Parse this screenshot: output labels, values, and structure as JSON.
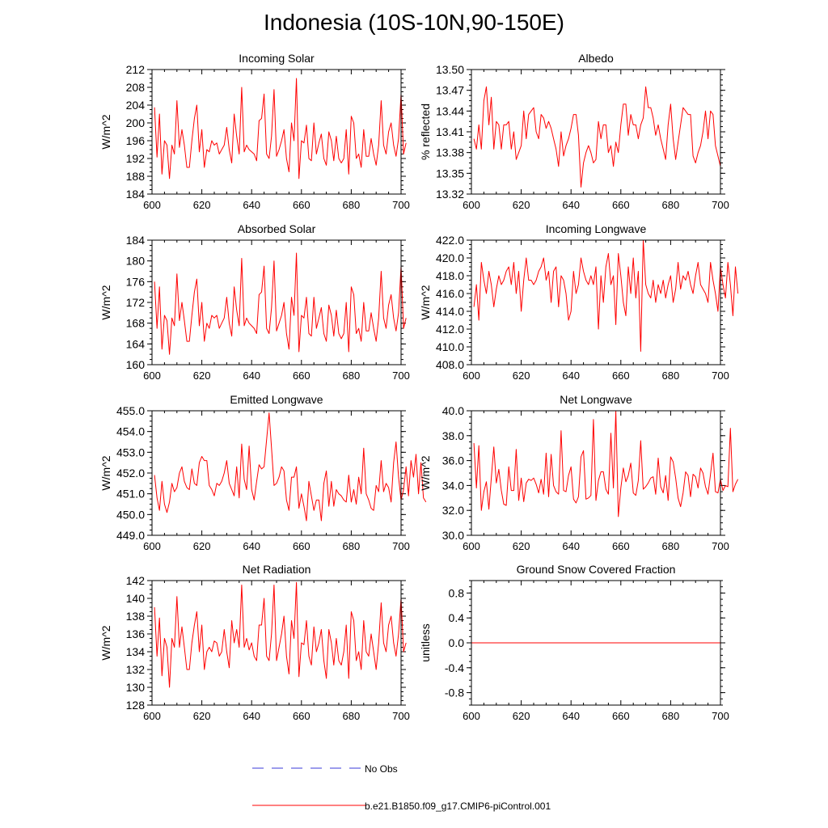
{
  "title": "Indonesia (10S-10N,90-150E)",
  "legend": {
    "entries": [
      {
        "label": "No Obs",
        "color": "#3a3ad8",
        "style": "dashed"
      },
      {
        "label": "b.e21.B1850.f09_g17.CMIP6-piControl.001",
        "color": "#ff0000",
        "style": "solid"
      }
    ]
  },
  "chart_data": [
    {
      "type": "line",
      "title": "Incoming Solar",
      "ylabel": "W/m^2",
      "xlabel": "",
      "xlim": [
        600,
        700
      ],
      "ylim": [
        184,
        212
      ],
      "xticks": [
        "600",
        "620",
        "640",
        "660",
        "680",
        "700"
      ],
      "yticks": [
        "184",
        "188",
        "192",
        "196",
        "200",
        "204",
        "208",
        "212"
      ],
      "series": [
        {
          "name": "b.e21.B1850.f09_g17.CMIP6-piControl.001",
          "color": "#ff0000",
          "x_start": 601,
          "values": [
            203.5,
            192.3,
            202.0,
            188.5,
            196.0,
            195.0,
            187.5,
            195.0,
            193.0,
            205.0,
            194.5,
            198.5,
            195.0,
            190.0,
            190.0,
            196.0,
            201.0,
            204.0,
            193.5,
            198.5,
            190.0,
            194.0,
            193.5,
            196.0,
            195.0,
            195.5,
            193.0,
            194.0,
            195.0,
            199.0,
            194.0,
            191.0,
            202.0,
            197.0,
            193.0,
            208.0,
            193.5,
            195.0,
            194.0,
            193.5,
            193.0,
            191.5,
            200.5,
            201.0,
            206.5,
            193.0,
            192.0,
            197.0,
            207.5,
            192.5,
            194.0,
            196.0,
            198.5,
            192.0,
            189.0,
            200.0,
            196.0,
            210.0,
            187.5,
            196.0,
            195.5,
            199.5,
            192.0,
            191.5,
            200.0,
            193.0,
            195.5,
            197.5,
            192.0,
            190.5,
            198.0,
            196.0,
            191.5,
            197.0,
            192.0,
            191.0,
            192.0,
            198.5,
            188.5,
            201.5,
            200.0,
            192.0,
            193.0,
            190.0,
            198.5,
            192.5,
            192.5,
            196.5,
            193.0,
            190.5,
            195.0,
            205.0,
            195.0,
            193.0,
            198.0,
            200.0,
            195.0,
            192.5,
            196.5,
            206.5,
            193.0,
            195.5
          ]
        }
      ]
    },
    {
      "type": "line",
      "title": "Albedo",
      "ylabel": "% reflected",
      "xlabel": "",
      "xlim": [
        600,
        700
      ],
      "ylim": [
        13.32,
        13.5
      ],
      "xticks": [
        "600",
        "620",
        "640",
        "660",
        "680",
        "700"
      ],
      "yticks": [
        "13.32",
        "13.35",
        "13.38",
        "13.41",
        "13.44",
        "13.47",
        "13.50"
      ],
      "series": [
        {
          "name": "b.e21.B1850.f09_g17.CMIP6-piControl.001",
          "color": "#ff0000",
          "x_start": 601,
          "values": [
            13.4,
            13.385,
            13.42,
            13.385,
            13.455,
            13.475,
            13.42,
            13.46,
            13.385,
            13.425,
            13.42,
            13.385,
            13.42,
            13.42,
            13.425,
            13.385,
            13.41,
            13.37,
            13.38,
            13.39,
            13.44,
            13.4,
            13.435,
            13.44,
            13.445,
            13.41,
            13.4,
            13.435,
            13.43,
            13.415,
            13.425,
            13.415,
            13.4,
            13.385,
            13.36,
            13.41,
            13.375,
            13.39,
            13.4,
            13.415,
            13.435,
            13.435,
            13.405,
            13.33,
            13.365,
            13.38,
            13.39,
            13.38,
            13.365,
            13.37,
            13.425,
            13.4,
            13.42,
            13.42,
            13.38,
            13.39,
            13.36,
            13.395,
            13.38,
            13.42,
            13.45,
            13.45,
            13.405,
            13.435,
            13.42,
            13.42,
            13.4,
            13.42,
            13.43,
            13.475,
            13.445,
            13.445,
            13.43,
            13.405,
            13.42,
            13.4,
            13.385,
            13.37,
            13.42,
            13.45,
            13.4,
            13.37,
            13.395,
            13.42,
            13.445,
            13.44,
            13.435,
            13.435,
            13.375,
            13.365,
            13.38,
            13.39,
            13.41,
            13.44,
            13.4,
            13.44,
            13.435,
            13.39,
            13.375,
            13.36
          ]
        }
      ]
    },
    {
      "type": "line",
      "title": "Absorbed Solar",
      "ylabel": "W/m^2",
      "xlabel": "",
      "xlim": [
        600,
        700
      ],
      "ylim": [
        160,
        184
      ],
      "xticks": [
        "600",
        "620",
        "640",
        "660",
        "680",
        "700"
      ],
      "yticks": [
        "160",
        "164",
        "168",
        "172",
        "176",
        "180",
        "184"
      ],
      "series": [
        {
          "name": "b.e21.B1850.f09_g17.CMIP6-piControl.001",
          "color": "#ff0000",
          "x_start": 601,
          "values": [
            176.0,
            167.0,
            175.0,
            163.0,
            169.5,
            168.5,
            162.0,
            169.0,
            167.5,
            177.5,
            168.5,
            172.0,
            168.5,
            164.5,
            164.5,
            169.5,
            174.0,
            176.5,
            167.5,
            172.0,
            164.5,
            168.0,
            167.0,
            169.5,
            169.0,
            169.5,
            167.0,
            168.0,
            169.0,
            173.0,
            168.0,
            165.5,
            175.0,
            170.5,
            167.5,
            180.5,
            167.5,
            169.0,
            168.0,
            167.5,
            167.0,
            166.0,
            173.5,
            174.0,
            179.0,
            167.0,
            166.0,
            171.0,
            180.0,
            166.5,
            168.0,
            169.5,
            172.0,
            166.0,
            163.0,
            173.0,
            169.5,
            181.5,
            162.5,
            169.5,
            169.0,
            173.0,
            166.0,
            165.5,
            173.0,
            167.0,
            169.0,
            171.0,
            166.0,
            164.5,
            171.5,
            169.5,
            165.5,
            170.5,
            166.0,
            165.0,
            166.0,
            172.0,
            162.5,
            175.0,
            173.5,
            166.0,
            167.0,
            164.5,
            172.0,
            166.5,
            166.5,
            170.0,
            167.0,
            164.5,
            169.0,
            178.0,
            169.0,
            167.0,
            171.5,
            173.5,
            169.0,
            166.5,
            170.0,
            179.0,
            167.0,
            169.0
          ]
        }
      ]
    },
    {
      "type": "line",
      "title": "Incoming Longwave",
      "ylabel": "W/m^2",
      "xlabel": "",
      "xlim": [
        600,
        700
      ],
      "ylim": [
        408.0,
        422.0
      ],
      "xticks": [
        "600",
        "620",
        "640",
        "660",
        "680",
        "700"
      ],
      "yticks": [
        "408.0",
        "410.0",
        "412.0",
        "414.0",
        "416.0",
        "418.0",
        "420.0",
        "422.0"
      ],
      "series": [
        {
          "name": "b.e21.B1850.f09_g17.CMIP6-piControl.001",
          "color": "#ff0000",
          "x_start": 601,
          "values": [
            414.5,
            417.0,
            413.0,
            419.5,
            417.5,
            416.0,
            418.5,
            417.0,
            414.5,
            416.5,
            418.0,
            417.0,
            417.5,
            418.5,
            419.0,
            417.0,
            419.5,
            416.0,
            418.5,
            414.0,
            417.5,
            420.0,
            417.5,
            417.5,
            417.0,
            417.5,
            418.5,
            419.0,
            420.0,
            417.5,
            418.5,
            415.0,
            418.5,
            419.0,
            414.5,
            418.0,
            417.5,
            416.0,
            413.0,
            414.0,
            418.5,
            416.0,
            417.0,
            420.0,
            418.5,
            417.5,
            417.0,
            418.0,
            417.0,
            419.0,
            412.0,
            418.0,
            415.0,
            419.0,
            420.5,
            417.0,
            418.0,
            412.5,
            420.5,
            418.0,
            415.0,
            413.5,
            419.0,
            416.0,
            420.0,
            415.5,
            418.5,
            409.5,
            422.0,
            417.0,
            416.0,
            415.5,
            417.5,
            415.0,
            417.0,
            416.0,
            417.5,
            415.5,
            417.0,
            418.0,
            415.0,
            416.5,
            419.5,
            416.5,
            418.0,
            417.5,
            418.5,
            417.0,
            416.0,
            418.0,
            419.5,
            417.0,
            416.5,
            416.0,
            415.0,
            419.5,
            417.5,
            416.0,
            414.0,
            419.0,
            417.0,
            415.5,
            419.5,
            417.0,
            413.5,
            419.0,
            416.0
          ]
        }
      ]
    },
    {
      "type": "line",
      "title": "Emitted Longwave",
      "ylabel": "W/m^2",
      "xlabel": "",
      "xlim": [
        600,
        700
      ],
      "ylim": [
        449.0,
        455.0
      ],
      "xticks": [
        "600",
        "620",
        "640",
        "660",
        "680",
        "700"
      ],
      "yticks": [
        "449.0",
        "450.0",
        "451.0",
        "452.0",
        "453.0",
        "454.0",
        "455.0"
      ],
      "series": [
        {
          "name": "b.e21.B1850.f09_g17.CMIP6-piControl.001",
          "color": "#ff0000",
          "x_start": 601,
          "values": [
            451.9,
            450.8,
            450.2,
            451.6,
            450.5,
            450.1,
            450.6,
            451.5,
            451.1,
            451.3,
            452.0,
            452.3,
            451.6,
            451.3,
            451.2,
            452.2,
            451.5,
            451.4,
            452.5,
            452.8,
            452.6,
            452.6,
            451.4,
            451.2,
            450.9,
            451.5,
            451.4,
            451.6,
            452.0,
            452.6,
            451.5,
            451.2,
            450.9,
            452.3,
            450.8,
            453.4,
            451.7,
            451.2,
            453.3,
            451.2,
            450.7,
            451.6,
            452.4,
            452.2,
            452.3,
            453.6,
            454.9,
            453.2,
            451.4,
            451.5,
            451.8,
            452.3,
            452.1,
            450.7,
            450.2,
            451.8,
            451.8,
            452.3,
            450.3,
            451.0,
            450.4,
            449.7,
            451.6,
            450.9,
            450.2,
            450.7,
            450.7,
            449.7,
            451.5,
            452.1,
            450.4,
            451.6,
            450.4,
            451.2,
            451.0,
            450.9,
            450.7,
            450.6,
            451.9,
            450.6,
            451.2,
            450.5,
            451.8,
            451.0,
            453.2,
            451.0,
            450.7,
            450.3,
            450.2,
            451.4,
            451.1,
            452.6,
            451.1,
            451.5,
            451.3,
            450.6,
            452.5,
            453.5,
            451.8,
            450.7,
            451.2,
            452.3,
            450.9,
            452.6,
            451.8,
            452.9,
            451.0,
            452.5,
            450.8,
            450.6
          ]
        }
      ]
    },
    {
      "type": "line",
      "title": "Net Longwave",
      "ylabel": "W/m^2",
      "xlabel": "",
      "xlim": [
        600,
        700
      ],
      "ylim": [
        30.0,
        40.0
      ],
      "xticks": [
        "600",
        "620",
        "640",
        "660",
        "680",
        "700"
      ],
      "yticks": [
        "30.0",
        "32.0",
        "34.0",
        "36.0",
        "38.0",
        "40.0"
      ],
      "series": [
        {
          "name": "b.e21.B1850.f09_g17.CMIP6-piControl.001",
          "color": "#ff0000",
          "x_start": 601,
          "values": [
            37.4,
            33.8,
            37.2,
            32.0,
            33.5,
            34.3,
            32.1,
            34.6,
            37.1,
            34.2,
            35.3,
            33.6,
            32.5,
            32.4,
            35.5,
            33.6,
            33.6,
            36.9,
            32.8,
            34.6,
            32.7,
            34.2,
            34.5,
            34.4,
            34.6,
            34.1,
            33.4,
            34.5,
            33.3,
            36.6,
            33.1,
            36.5,
            34.0,
            33.5,
            33.3,
            38.4,
            33.6,
            33.5,
            34.8,
            35.5,
            32.9,
            32.6,
            33.1,
            36.3,
            36.8,
            32.9,
            33.0,
            33.2,
            39.3,
            32.8,
            34.4,
            35.1,
            35.1,
            33.7,
            33.3,
            38.2,
            33.8,
            40.0,
            31.5,
            33.8,
            35.4,
            34.3,
            34.8,
            35.8,
            33.4,
            33.2,
            34.4,
            37.6,
            33.7,
            33.9,
            34.2,
            34.6,
            34.7,
            33.3,
            36.2,
            33.9,
            33.4,
            34.8,
            32.8,
            36.3,
            35.9,
            34.6,
            33.0,
            32.3,
            33.4,
            35.1,
            34.8,
            33.1,
            34.9,
            34.7,
            33.8,
            35.4,
            35.0,
            33.9,
            33.3,
            34.9,
            36.6,
            33.5,
            33.4,
            34.5,
            33.6,
            34.0,
            33.9,
            38.6,
            33.5,
            34.1,
            34.5
          ]
        }
      ]
    },
    {
      "type": "line",
      "title": "Net Radiation",
      "ylabel": "W/m^2",
      "xlabel": "",
      "xlim": [
        600,
        700
      ],
      "ylim": [
        128,
        142
      ],
      "xticks": [
        "600",
        "620",
        "640",
        "660",
        "680",
        "700"
      ],
      "yticks": [
        "128",
        "130",
        "132",
        "134",
        "136",
        "138",
        "140",
        "142"
      ],
      "series": [
        {
          "name": "b.e21.B1850.f09_g17.CMIP6-piControl.001",
          "color": "#ff0000",
          "x_start": 601,
          "values": [
            139.0,
            133.5,
            137.8,
            131.3,
            135.5,
            134.5,
            130.0,
            135.5,
            134.5,
            140.2,
            134.5,
            136.8,
            134.5,
            132.0,
            132.0,
            135.0,
            137.0,
            138.5,
            134.0,
            137.0,
            132.0,
            134.0,
            134.5,
            134.0,
            135.2,
            135.0,
            133.5,
            134.0,
            136.5,
            134.0,
            132.2,
            137.5,
            135.0,
            136.5,
            134.5,
            141.5,
            134.5,
            135.5,
            134.2,
            135.0,
            133.5,
            133.0,
            137.0,
            137.0,
            140.0,
            133.5,
            133.0,
            136.0,
            141.5,
            133.0,
            134.5,
            136.0,
            138.0,
            133.5,
            131.5,
            137.5,
            135.5,
            141.8,
            131.2,
            135.0,
            134.8,
            137.5,
            133.5,
            132.5,
            136.8,
            134.0,
            135.0,
            136.5,
            133.0,
            131.0,
            136.5,
            135.0,
            132.5,
            135.5,
            133.0,
            132.5,
            134.0,
            137.0,
            131.0,
            138.5,
            137.5,
            133.0,
            134.0,
            132.0,
            137.5,
            134.0,
            133.5,
            136.0,
            134.0,
            132.0,
            135.0,
            139.5,
            135.0,
            134.0,
            137.0,
            138.0,
            135.0,
            133.5,
            136.0,
            140.0,
            134.0,
            135.0
          ]
        }
      ]
    },
    {
      "type": "line",
      "title": "Ground Snow Covered Fraction",
      "ylabel": "unitless",
      "xlabel": "",
      "xlim": [
        600,
        700
      ],
      "ylim": [
        -1.0,
        1.0
      ],
      "xticks": [
        "600",
        "620",
        "640",
        "660",
        "680",
        "700"
      ],
      "yticks": [
        "-0.8",
        "-0.4",
        "0.0",
        "0.4",
        "0.8"
      ],
      "ytick_values": [
        -0.8,
        -0.4,
        0.0,
        0.4,
        0.8
      ],
      "series": [
        {
          "name": "b.e21.B1850.f09_g17.CMIP6-piControl.001",
          "color": "#ff0000",
          "x": [
            600,
            700
          ],
          "values": [
            0.0,
            0.0
          ]
        }
      ]
    }
  ]
}
